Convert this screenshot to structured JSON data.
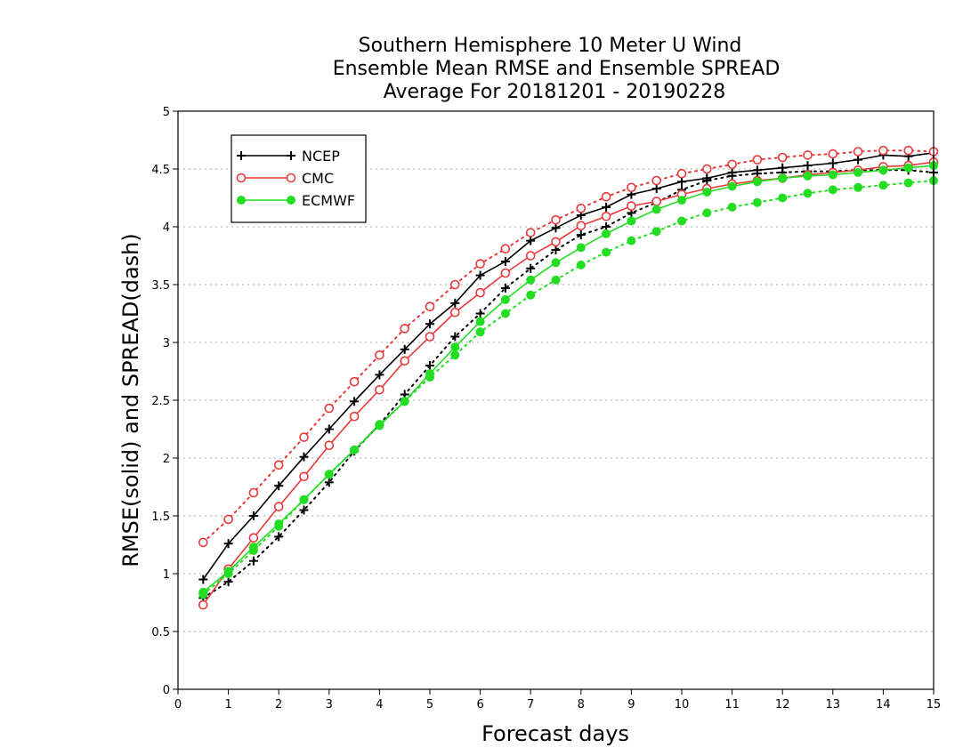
{
  "chart_data": {
    "type": "line",
    "title": [
      "Southern Hemisphere 10 Meter U Wind",
      "Ensemble Mean RMSE and Ensemble SPREAD",
      "Average For 20181201 - 20190228"
    ],
    "xlabel": "Forecast days",
    "ylabel": "RMSE(solid) and SPREAD(dash)",
    "xlim": [
      0,
      15
    ],
    "ylim": [
      0,
      5
    ],
    "xticks": [
      "0",
      "1",
      "2",
      "3",
      "4",
      "5",
      "6",
      "7",
      "8",
      "9",
      "10",
      "11",
      "12",
      "13",
      "14",
      "15"
    ],
    "yticks": [
      "0",
      "0.5",
      "1",
      "1.5",
      "2",
      "2.5",
      "3",
      "3.5",
      "4",
      "4.5",
      "5"
    ],
    "grid": "horizontal dotted",
    "legend_position": "top-left",
    "x": [
      0.5,
      1,
      1.5,
      2,
      2.5,
      3,
      3.5,
      4,
      4.5,
      5,
      5.5,
      6,
      6.5,
      7,
      7.5,
      8,
      8.5,
      9,
      9.5,
      10,
      10.5,
      11,
      11.5,
      12,
      12.5,
      13,
      13.5,
      14,
      14.5,
      15
    ],
    "series": [
      {
        "name": "NCEP",
        "color": "#000000",
        "marker": "plus",
        "rmse": [
          0.95,
          1.26,
          1.5,
          1.76,
          2.01,
          2.25,
          2.49,
          2.72,
          2.94,
          3.16,
          3.34,
          3.58,
          3.7,
          3.88,
          3.99,
          4.1,
          4.17,
          4.28,
          4.33,
          4.39,
          4.42,
          4.47,
          4.49,
          4.51,
          4.53,
          4.55,
          4.58,
          4.62,
          4.61,
          4.64
        ],
        "spread": [
          0.79,
          0.93,
          1.11,
          1.32,
          1.55,
          1.79,
          2.06,
          2.29,
          2.55,
          2.8,
          3.05,
          3.25,
          3.47,
          3.64,
          3.8,
          3.93,
          4.0,
          4.12,
          4.21,
          4.32,
          4.4,
          4.44,
          4.46,
          4.47,
          4.48,
          4.48,
          4.49,
          4.49,
          4.49,
          4.47
        ]
      },
      {
        "name": "CMC",
        "color": "#e83a3a",
        "marker": "open-circle",
        "rmse": [
          0.73,
          1.04,
          1.31,
          1.58,
          1.84,
          2.11,
          2.36,
          2.59,
          2.84,
          3.05,
          3.26,
          3.43,
          3.6,
          3.75,
          3.87,
          4.01,
          4.09,
          4.18,
          4.22,
          4.28,
          4.33,
          4.37,
          4.4,
          4.42,
          4.45,
          4.47,
          4.49,
          4.52,
          4.53,
          4.56
        ],
        "spread": [
          1.27,
          1.47,
          1.7,
          1.94,
          2.18,
          2.43,
          2.66,
          2.89,
          3.12,
          3.31,
          3.5,
          3.68,
          3.81,
          3.95,
          4.06,
          4.16,
          4.26,
          4.34,
          4.4,
          4.46,
          4.5,
          4.54,
          4.58,
          4.6,
          4.62,
          4.63,
          4.65,
          4.66,
          4.66,
          4.65
        ]
      },
      {
        "name": "ECMWF",
        "color": "#22dd22",
        "marker": "filled-circle",
        "rmse": [
          0.84,
          1.02,
          1.23,
          1.43,
          1.64,
          1.86,
          2.07,
          2.28,
          2.49,
          2.73,
          2.96,
          3.18,
          3.37,
          3.54,
          3.69,
          3.82,
          3.94,
          4.05,
          4.15,
          4.23,
          4.3,
          4.35,
          4.39,
          4.42,
          4.44,
          4.45,
          4.47,
          4.49,
          4.51,
          4.53
        ],
        "spread": [
          0.82,
          1.0,
          1.2,
          1.41,
          1.64,
          1.86,
          2.07,
          2.29,
          2.49,
          2.7,
          2.89,
          3.09,
          3.25,
          3.41,
          3.54,
          3.67,
          3.78,
          3.88,
          3.96,
          4.05,
          4.12,
          4.17,
          4.21,
          4.25,
          4.29,
          4.32,
          4.34,
          4.36,
          4.38,
          4.4
        ]
      }
    ]
  }
}
